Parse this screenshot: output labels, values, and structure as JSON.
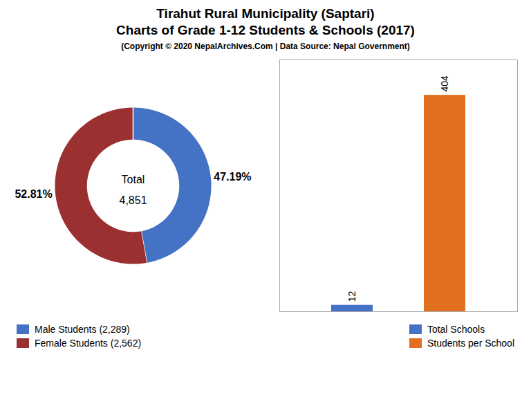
{
  "title": [
    "Tirahut Rural Municipality (Saptari)",
    "Charts of Grade 1-12 Students & Schools (2017)"
  ],
  "subtitle": "(Copyright © 2020 NepalArchives.Com | Data Source: Nepal Government)",
  "chart_data": [
    {
      "type": "pie",
      "categories": [
        "Male Students (2,289)",
        "Female Students (2,562)"
      ],
      "values": [
        47.19,
        52.81
      ],
      "value_labels": [
        "47.19%",
        "52.81%"
      ],
      "data_labels": true,
      "colors": [
        "#4472c4",
        "#9b3030"
      ],
      "annotations": [
        "Total",
        "4,851"
      ],
      "legend": "lower left"
    },
    {
      "type": "bar",
      "categories": [
        "Total Schools",
        "Students per School"
      ],
      "values": [
        12,
        404
      ],
      "colors": [
        "#4472c4",
        "#e07020"
      ],
      "ylim": [
        0,
        470
      ],
      "yticks": [],
      "tick_labels": false,
      "data_labels": true,
      "legend": "lower right"
    }
  ]
}
